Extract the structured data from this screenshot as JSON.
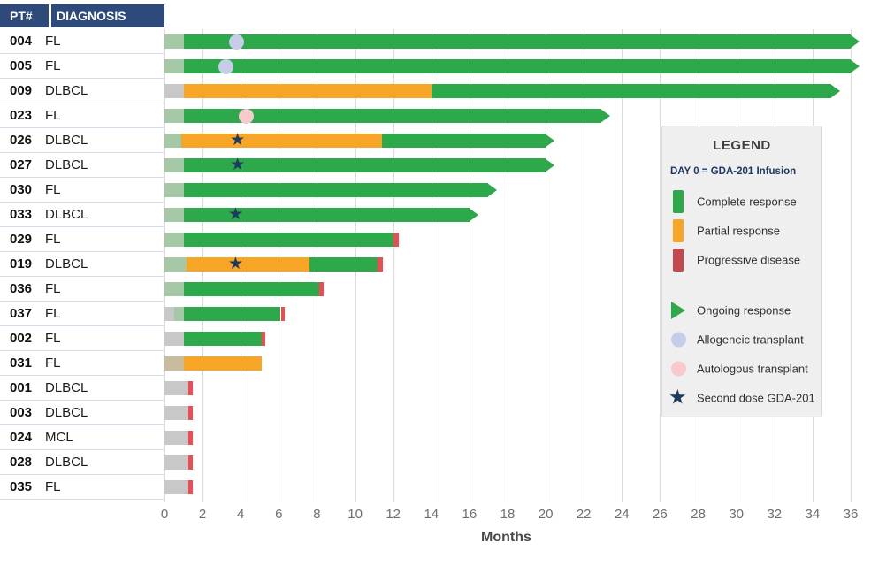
{
  "table": {
    "pt_header": "PT#",
    "diagnosis_header": "DIAGNOSIS"
  },
  "icons": {
    "star_glyph": "★"
  },
  "colors": {
    "header_bg": "#2e4a7a",
    "row_divider": "#d6dcea",
    "grid": "#dcdcdc",
    "tick_text": "#6e6e6e",
    "axis_label_text": "#4a4a4a",
    "cr": "#2da84a",
    "pr": "#f7a526",
    "pd": "#ee4b52",
    "pd_legend": "#c2494e",
    "pre_cr": "#a7c8a7",
    "pre_pd": "#c8c8c8",
    "pre_pr": "#c9bc9c",
    "allo": "#c7cce8",
    "auto": "#f8c9cd",
    "star": "#1e3a5f"
  },
  "legend": {
    "title": "LEGEND",
    "subtitle": "DAY 0 = GDA-201 Infusion",
    "response_items": [
      {
        "key": "cr",
        "label": "Complete response",
        "color": "#2da84a"
      },
      {
        "key": "pr",
        "label": "Partial response",
        "color": "#f7a526"
      },
      {
        "key": "pd",
        "label": "Progressive disease",
        "color": "#c2494e"
      }
    ],
    "marker_items": [
      {
        "key": "ongoing",
        "label": "Ongoing response",
        "color": "#2da84a"
      },
      {
        "key": "allo",
        "label": "Allogeneic transplant",
        "color": "#c7cce8"
      },
      {
        "key": "auto",
        "label": "Autologous transplant",
        "color": "#f8c9cd"
      },
      {
        "key": "second",
        "label": "Second dose GDA-201",
        "color": "#1e3a5f"
      }
    ]
  },
  "chart_data": {
    "type": "bar",
    "subtype": "swimmer",
    "title": "",
    "xlabel": "Months",
    "xlim": [
      0,
      36
    ],
    "xticks": [
      0,
      2,
      4,
      6,
      8,
      10,
      12,
      14,
      16,
      18,
      20,
      22,
      24,
      26,
      28,
      30,
      32,
      34,
      36
    ],
    "grid": true,
    "legend_position": "right",
    "segment_legend": {
      "cr": "Complete response",
      "pr": "Partial response",
      "pd": "Progressive disease",
      "pre_cr": "pre-response lead-in (faded green)",
      "pre_pd": "lead-in (gray)",
      "pre_pr": "lead-in (tan)"
    },
    "patients": [
      {
        "id": "004",
        "diagnosis": "FL",
        "ongoing": true,
        "markers": [
          {
            "t": "allo",
            "month": 3.8
          }
        ],
        "segments": [
          {
            "t": "pre_cr",
            "s": 0,
            "e": 1
          },
          {
            "t": "cr",
            "s": 1,
            "e": 36
          }
        ]
      },
      {
        "id": "005",
        "diagnosis": "FL",
        "ongoing": true,
        "markers": [
          {
            "t": "allo",
            "month": 3.2
          }
        ],
        "segments": [
          {
            "t": "pre_cr",
            "s": 0,
            "e": 1
          },
          {
            "t": "cr",
            "s": 1,
            "e": 36
          }
        ]
      },
      {
        "id": "009",
        "diagnosis": "DLBCL",
        "ongoing": true,
        "markers": [],
        "segments": [
          {
            "t": "pre_pd",
            "s": 0,
            "e": 1
          },
          {
            "t": "pr",
            "s": 1,
            "e": 14
          },
          {
            "t": "cr",
            "s": 14,
            "e": 35
          }
        ]
      },
      {
        "id": "023",
        "diagnosis": "FL",
        "ongoing": true,
        "markers": [
          {
            "t": "auto",
            "month": 4.3
          }
        ],
        "segments": [
          {
            "t": "pre_cr",
            "s": 0,
            "e": 1
          },
          {
            "t": "cr",
            "s": 1,
            "e": 22.9
          }
        ]
      },
      {
        "id": "026",
        "diagnosis": "DLBCL",
        "ongoing": true,
        "markers": [
          {
            "t": "second",
            "month": 3.9
          }
        ],
        "segments": [
          {
            "t": "pre_cr",
            "s": 0,
            "e": 0.9
          },
          {
            "t": "pr",
            "s": 0.9,
            "e": 11.4
          },
          {
            "t": "cr",
            "s": 11.4,
            "e": 20
          }
        ]
      },
      {
        "id": "027",
        "diagnosis": "DLBCL",
        "ongoing": true,
        "markers": [
          {
            "t": "second",
            "month": 3.9
          }
        ],
        "segments": [
          {
            "t": "pre_cr",
            "s": 0,
            "e": 1
          },
          {
            "t": "cr",
            "s": 1,
            "e": 20
          }
        ]
      },
      {
        "id": "030",
        "diagnosis": "FL",
        "ongoing": true,
        "markers": [],
        "segments": [
          {
            "t": "pre_cr",
            "s": 0,
            "e": 1
          },
          {
            "t": "cr",
            "s": 1,
            "e": 17
          }
        ]
      },
      {
        "id": "033",
        "diagnosis": "DLBCL",
        "ongoing": true,
        "markers": [
          {
            "t": "second",
            "month": 3.8
          }
        ],
        "segments": [
          {
            "t": "pre_cr",
            "s": 0,
            "e": 1
          },
          {
            "t": "cr",
            "s": 1,
            "e": 16
          }
        ]
      },
      {
        "id": "029",
        "diagnosis": "FL",
        "ongoing": false,
        "markers": [],
        "segments": [
          {
            "t": "pre_cr",
            "s": 0,
            "e": 1
          },
          {
            "t": "cr",
            "s": 1,
            "e": 12
          },
          {
            "t": "pd",
            "s": 12,
            "e": 12.3
          }
        ]
      },
      {
        "id": "019",
        "diagnosis": "DLBCL",
        "ongoing": false,
        "markers": [
          {
            "t": "second",
            "month": 3.8
          }
        ],
        "segments": [
          {
            "t": "pre_cr",
            "s": 0,
            "e": 1.15
          },
          {
            "t": "pr",
            "s": 1.15,
            "e": 7.6
          },
          {
            "t": "cr",
            "s": 7.6,
            "e": 11.2
          },
          {
            "t": "pd",
            "s": 11.2,
            "e": 11.45
          }
        ]
      },
      {
        "id": "036",
        "diagnosis": "FL",
        "ongoing": false,
        "markers": [],
        "segments": [
          {
            "t": "pre_cr",
            "s": 0,
            "e": 1
          },
          {
            "t": "cr",
            "s": 1,
            "e": 8.1
          },
          {
            "t": "pd",
            "s": 8.1,
            "e": 8.35
          }
        ]
      },
      {
        "id": "037",
        "diagnosis": "FL",
        "ongoing": false,
        "markers": [],
        "segments": [
          {
            "t": "pre_pd",
            "s": 0,
            "e": 0.5
          },
          {
            "t": "pre_cr",
            "s": 0.5,
            "e": 1
          },
          {
            "t": "cr",
            "s": 1,
            "e": 6.1
          },
          {
            "t": "pd",
            "s": 6.1,
            "e": 6.3
          }
        ]
      },
      {
        "id": "002",
        "diagnosis": "FL",
        "ongoing": false,
        "markers": [],
        "segments": [
          {
            "t": "pre_pd",
            "s": 0,
            "e": 1
          },
          {
            "t": "cr",
            "s": 1,
            "e": 5.1
          },
          {
            "t": "pd",
            "s": 5.1,
            "e": 5.3
          }
        ]
      },
      {
        "id": "031",
        "diagnosis": "FL",
        "ongoing": false,
        "markers": [],
        "segments": [
          {
            "t": "pre_pr",
            "s": 0,
            "e": 1
          },
          {
            "t": "pr",
            "s": 1,
            "e": 5.1
          }
        ]
      },
      {
        "id": "001",
        "diagnosis": "DLBCL",
        "ongoing": false,
        "markers": [],
        "segments": [
          {
            "t": "pre_pd",
            "s": 0,
            "e": 1.25
          },
          {
            "t": "pd",
            "s": 1.25,
            "e": 1.5
          }
        ]
      },
      {
        "id": "003",
        "diagnosis": "DLBCL",
        "ongoing": false,
        "markers": [],
        "segments": [
          {
            "t": "pre_pd",
            "s": 0,
            "e": 1.25
          },
          {
            "t": "pd",
            "s": 1.25,
            "e": 1.5
          }
        ]
      },
      {
        "id": "024",
        "diagnosis": "MCL",
        "ongoing": false,
        "markers": [],
        "segments": [
          {
            "t": "pre_pd",
            "s": 0,
            "e": 1.25
          },
          {
            "t": "pd",
            "s": 1.25,
            "e": 1.5
          }
        ]
      },
      {
        "id": "028",
        "diagnosis": "DLBCL",
        "ongoing": false,
        "markers": [],
        "segments": [
          {
            "t": "pre_pd",
            "s": 0,
            "e": 1.25
          },
          {
            "t": "pd",
            "s": 1.25,
            "e": 1.5
          }
        ]
      },
      {
        "id": "035",
        "diagnosis": "FL",
        "ongoing": false,
        "markers": [],
        "segments": [
          {
            "t": "pre_pd",
            "s": 0,
            "e": 1.25
          },
          {
            "t": "pd",
            "s": 1.25,
            "e": 1.5
          }
        ]
      }
    ]
  }
}
